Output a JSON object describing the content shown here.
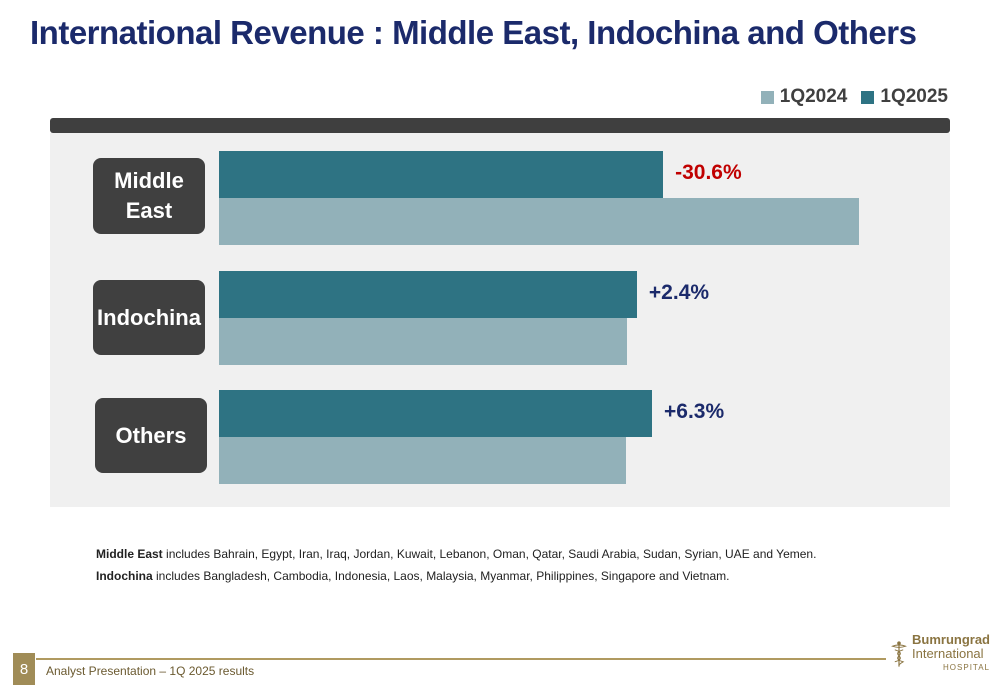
{
  "title": "International Revenue : Middle East, Indochina and Others",
  "legend": [
    {
      "label": "1Q2024",
      "color": "#92b1b9"
    },
    {
      "label": "1Q2025",
      "color": "#2e7383"
    }
  ],
  "chart_data": {
    "type": "bar",
    "orientation": "horizontal",
    "categories": [
      "Middle\nEast",
      "Indochina",
      "Others"
    ],
    "series": [
      {
        "name": "1Q2025",
        "values": [
          100,
          94.1,
          97.5
        ],
        "color": "#2e7383"
      },
      {
        "name": "1Q2024",
        "values": [
          144.1,
          91.9,
          91.7
        ],
        "color": "#92b1b9"
      }
    ],
    "annotations": [
      "-30.6%",
      "+2.4%",
      "+6.3%"
    ],
    "annotation_colors": [
      "#c00000",
      "#1b2a6b",
      "#1b2a6b"
    ],
    "xlim": [
      0,
      155
    ],
    "legend_position": "top-right",
    "grid": false
  },
  "notes": [
    {
      "bold": "Middle East",
      "text": " includes Bahrain, Egypt, Iran, Iraq, Jordan, Kuwait, Lebanon, Oman, Qatar, Saudi Arabia, Sudan, Syrian, UAE and Yemen."
    },
    {
      "bold": "Indochina",
      "text": " includes Bangladesh, Cambodia, Indonesia, Laos, Malaysia, Myanmar, Philippines, Singapore and Vietnam."
    }
  ],
  "footer": {
    "page_number": "8",
    "text": "Analyst Presentation – 1Q 2025 results"
  },
  "logo": {
    "line1": "Bumrungrad",
    "line2": "International",
    "line3": "HOSPITAL"
  }
}
